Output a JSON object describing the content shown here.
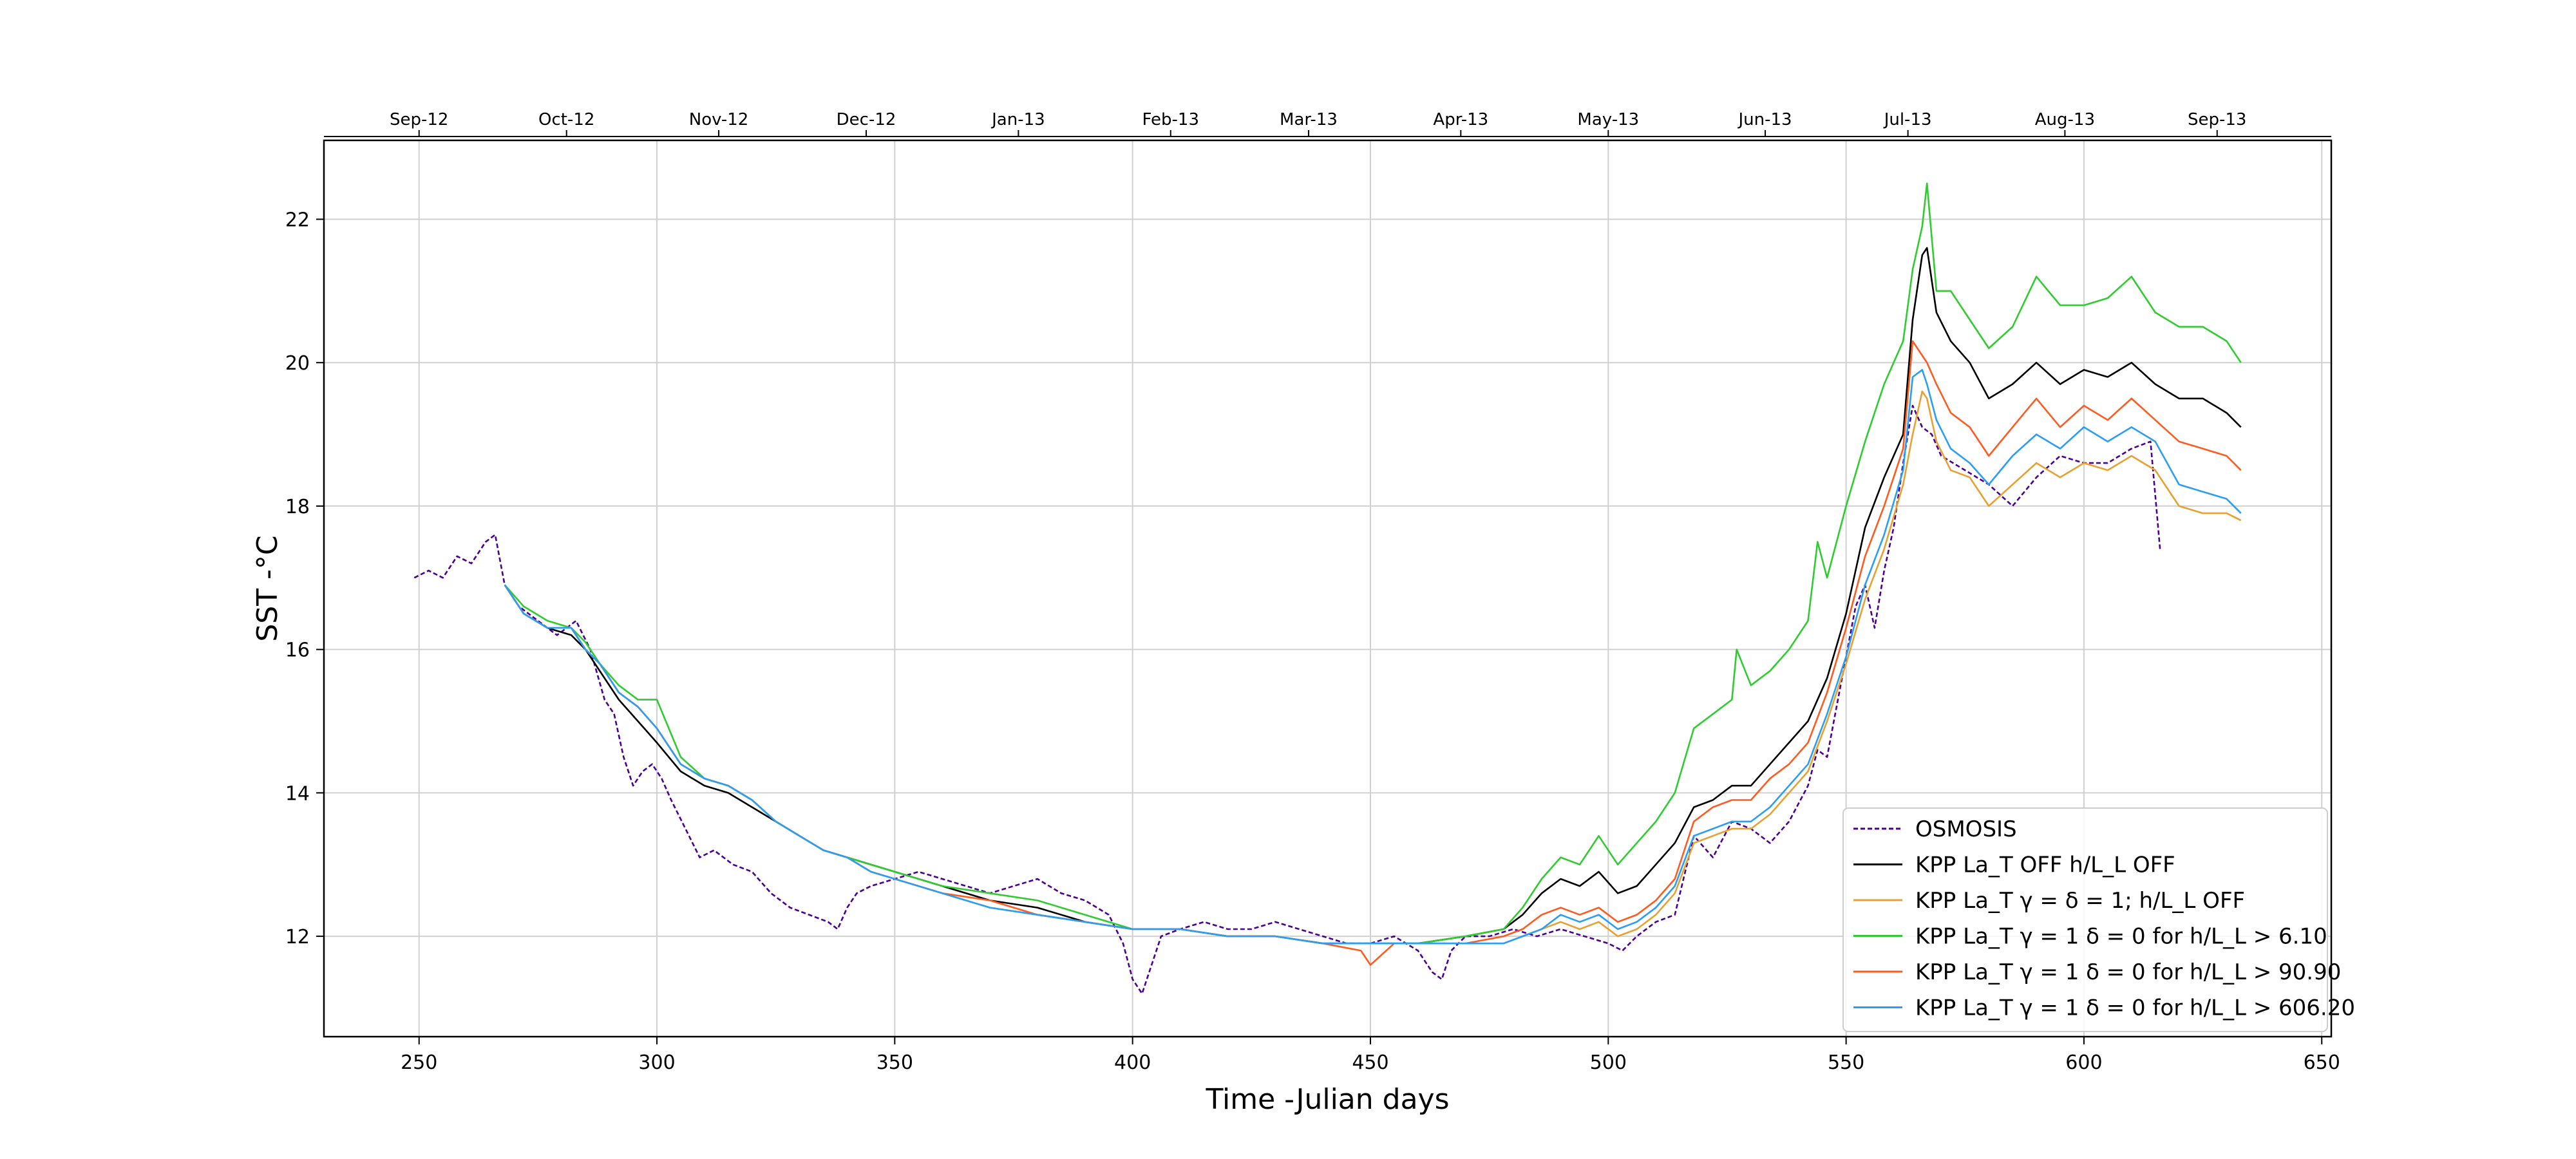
{
  "chart_data": {
    "type": "line",
    "title": "",
    "xlabel": "Time -Julian days",
    "ylabel": "SST -°C",
    "xlim": [
      230,
      652
    ],
    "ylim": [
      10.6,
      23.1
    ],
    "xticks": [
      250,
      300,
      350,
      400,
      450,
      500,
      550,
      600,
      650
    ],
    "yticks": [
      12,
      14,
      16,
      18,
      20,
      22
    ],
    "top_axis": {
      "ticks": [
        250,
        281,
        313,
        344,
        376,
        408,
        437,
        469,
        500,
        533,
        563,
        596,
        628
      ],
      "labels": [
        "Sep-12",
        "Oct-12",
        "Nov-12",
        "Dec-12",
        "Jan-13",
        "Feb-13",
        "Mar-13",
        "Apr-13",
        "May-13",
        "Jun-13",
        "Jul-13",
        "Aug-13",
        "Sep-13"
      ]
    },
    "grid": true,
    "legend_position": "lower-right",
    "series": [
      {
        "name": "OSMOSIS",
        "color": "#4b0092",
        "style": "dashed",
        "x": [
          249,
          252,
          255,
          258,
          261,
          264,
          266,
          268,
          271,
          275,
          279,
          283,
          286,
          289,
          291,
          293,
          295,
          297,
          299,
          301,
          303,
          306,
          309,
          312,
          316,
          320,
          324,
          328,
          332,
          336,
          338,
          340,
          342,
          345,
          350,
          355,
          360,
          365,
          370,
          375,
          380,
          385,
          390,
          395,
          398,
          400,
          402,
          404,
          406,
          410,
          415,
          420,
          425,
          430,
          435,
          440,
          445,
          450,
          455,
          460,
          463,
          465,
          467,
          470,
          475,
          480,
          485,
          490,
          495,
          500,
          503,
          506,
          510,
          514,
          518,
          522,
          526,
          530,
          534,
          538,
          542,
          544,
          546,
          548,
          550,
          552,
          554,
          556,
          558,
          560,
          562,
          564,
          566,
          568,
          570,
          575,
          580,
          585,
          590,
          595,
          600,
          605,
          610,
          614,
          616
        ],
        "y": [
          17.0,
          17.1,
          17.0,
          17.3,
          17.2,
          17.5,
          17.6,
          16.9,
          16.6,
          16.4,
          16.2,
          16.4,
          16.0,
          15.3,
          15.1,
          14.5,
          14.1,
          14.3,
          14.4,
          14.2,
          13.9,
          13.5,
          13.1,
          13.2,
          13.0,
          12.9,
          12.6,
          12.4,
          12.3,
          12.2,
          12.1,
          12.4,
          12.6,
          12.7,
          12.8,
          12.9,
          12.8,
          12.7,
          12.6,
          12.7,
          12.8,
          12.6,
          12.5,
          12.3,
          11.9,
          11.4,
          11.2,
          11.6,
          12.0,
          12.1,
          12.2,
          12.1,
          12.1,
          12.2,
          12.1,
          12.0,
          11.9,
          11.9,
          12.0,
          11.8,
          11.5,
          11.4,
          11.8,
          12.0,
          12.0,
          12.1,
          12.0,
          12.1,
          12.0,
          11.9,
          11.8,
          12.0,
          12.2,
          12.3,
          13.4,
          13.1,
          13.6,
          13.5,
          13.3,
          13.6,
          14.1,
          14.6,
          14.5,
          15.2,
          15.9,
          16.6,
          16.9,
          16.3,
          17.1,
          17.7,
          18.6,
          19.4,
          19.1,
          19.0,
          18.7,
          18.5,
          18.3,
          18.0,
          18.4,
          18.7,
          18.6,
          18.6,
          18.8,
          18.9,
          17.4
        ]
      },
      {
        "name": "KPP La_T OFF h/L_L OFF",
        "color": "#000000",
        "style": "solid",
        "x": [
          268,
          272,
          277,
          282,
          285,
          288,
          292,
          296,
          300,
          305,
          310,
          315,
          320,
          325,
          330,
          335,
          340,
          345,
          350,
          360,
          370,
          380,
          390,
          400,
          410,
          420,
          430,
          440,
          450,
          460,
          470,
          478,
          482,
          486,
          490,
          494,
          498,
          502,
          506,
          510,
          514,
          518,
          522,
          526,
          530,
          534,
          538,
          542,
          546,
          550,
          554,
          558,
          562,
          564,
          566,
          567,
          569,
          572,
          576,
          580,
          585,
          590,
          595,
          600,
          605,
          610,
          615,
          620,
          625,
          630,
          633
        ],
        "y": [
          16.9,
          16.5,
          16.3,
          16.2,
          16.0,
          15.7,
          15.3,
          15.0,
          14.7,
          14.3,
          14.1,
          14.0,
          13.8,
          13.6,
          13.4,
          13.2,
          13.1,
          13.0,
          12.9,
          12.7,
          12.5,
          12.4,
          12.2,
          12.1,
          12.1,
          12.0,
          12.0,
          11.9,
          11.9,
          11.9,
          12.0,
          12.1,
          12.3,
          12.6,
          12.8,
          12.7,
          12.9,
          12.6,
          12.7,
          13.0,
          13.3,
          13.8,
          13.9,
          14.1,
          14.1,
          14.4,
          14.7,
          15.0,
          15.6,
          16.5,
          17.7,
          18.4,
          19.0,
          20.6,
          21.5,
          21.6,
          20.7,
          20.3,
          20.0,
          19.5,
          19.7,
          20.0,
          19.7,
          19.9,
          19.8,
          20.0,
          19.7,
          19.5,
          19.5,
          19.3,
          19.1
        ]
      },
      {
        "name": "KPP La_T γ = δ = 1; h/L_L OFF",
        "color": "#e8a030",
        "style": "solid",
        "x": [
          268,
          272,
          277,
          282,
          285,
          288,
          292,
          296,
          300,
          305,
          310,
          315,
          320,
          325,
          330,
          335,
          340,
          345,
          350,
          360,
          370,
          380,
          390,
          400,
          410,
          420,
          430,
          440,
          450,
          460,
          470,
          478,
          482,
          486,
          490,
          494,
          498,
          502,
          506,
          510,
          514,
          518,
          522,
          526,
          530,
          534,
          538,
          542,
          546,
          550,
          554,
          558,
          562,
          564,
          566,
          567,
          569,
          572,
          576,
          580,
          585,
          590,
          595,
          600,
          605,
          610,
          615,
          620,
          625,
          630,
          633
        ],
        "y": [
          16.9,
          16.5,
          16.3,
          16.3,
          16.0,
          15.8,
          15.4,
          15.2,
          14.9,
          14.4,
          14.2,
          14.1,
          13.9,
          13.6,
          13.4,
          13.2,
          13.1,
          12.9,
          12.8,
          12.6,
          12.4,
          12.3,
          12.2,
          12.1,
          12.1,
          12.0,
          12.0,
          11.9,
          11.9,
          11.9,
          11.9,
          11.9,
          12.0,
          12.1,
          12.2,
          12.1,
          12.2,
          12.0,
          12.1,
          12.3,
          12.6,
          13.3,
          13.4,
          13.5,
          13.5,
          13.7,
          14.0,
          14.3,
          15.0,
          15.8,
          16.7,
          17.4,
          18.3,
          19.0,
          19.6,
          19.5,
          18.9,
          18.5,
          18.4,
          18.0,
          18.3,
          18.6,
          18.4,
          18.6,
          18.5,
          18.7,
          18.5,
          18.0,
          17.9,
          17.9,
          17.8
        ]
      },
      {
        "name": "KPP La_T γ = 1 δ = 0 for h/L_L > 6.10",
        "color": "#2ecc2e",
        "style": "solid",
        "x": [
          268,
          272,
          277,
          282,
          285,
          288,
          292,
          296,
          300,
          305,
          310,
          315,
          320,
          325,
          330,
          335,
          340,
          345,
          350,
          360,
          370,
          380,
          390,
          400,
          410,
          420,
          430,
          440,
          450,
          460,
          470,
          478,
          482,
          486,
          490,
          494,
          498,
          502,
          506,
          510,
          514,
          518,
          522,
          526,
          527,
          530,
          534,
          538,
          542,
          544,
          546,
          550,
          554,
          558,
          562,
          564,
          566,
          567,
          569,
          572,
          576,
          580,
          585,
          590,
          595,
          600,
          605,
          610,
          615,
          620,
          625,
          630,
          633
        ],
        "y": [
          16.9,
          16.6,
          16.4,
          16.3,
          16.1,
          15.8,
          15.5,
          15.3,
          15.3,
          14.5,
          14.2,
          14.1,
          13.9,
          13.6,
          13.4,
          13.2,
          13.1,
          13.0,
          12.9,
          12.7,
          12.6,
          12.5,
          12.3,
          12.1,
          12.1,
          12.0,
          12.0,
          11.9,
          11.9,
          11.9,
          12.0,
          12.1,
          12.4,
          12.8,
          13.1,
          13.0,
          13.4,
          13.0,
          13.3,
          13.6,
          14.0,
          14.9,
          15.1,
          15.3,
          16.0,
          15.5,
          15.7,
          16.0,
          16.4,
          17.5,
          17.0,
          18.0,
          18.9,
          19.7,
          20.3,
          21.3,
          21.9,
          22.5,
          21.0,
          21.0,
          20.6,
          20.2,
          20.5,
          21.2,
          20.8,
          20.8,
          20.9,
          21.2,
          20.7,
          20.5,
          20.5,
          20.3,
          20.0
        ]
      },
      {
        "name": "KPP La_T γ = 1 δ = 0 for h/L_L > 90.90",
        "color": "#ff5a1f",
        "style": "solid",
        "x": [
          268,
          272,
          277,
          282,
          285,
          288,
          292,
          296,
          300,
          305,
          310,
          315,
          320,
          325,
          330,
          335,
          340,
          345,
          350,
          360,
          370,
          380,
          390,
          400,
          410,
          420,
          430,
          440,
          448,
          450,
          455,
          460,
          470,
          478,
          482,
          486,
          490,
          494,
          498,
          502,
          506,
          510,
          514,
          518,
          522,
          526,
          530,
          534,
          538,
          542,
          546,
          550,
          554,
          558,
          562,
          564,
          566,
          567,
          569,
          572,
          576,
          580,
          585,
          590,
          595,
          600,
          605,
          610,
          615,
          620,
          625,
          630,
          633
        ],
        "y": [
          16.9,
          16.5,
          16.3,
          16.3,
          16.0,
          15.8,
          15.4,
          15.2,
          14.9,
          14.4,
          14.2,
          14.1,
          13.9,
          13.6,
          13.4,
          13.2,
          13.1,
          12.9,
          12.8,
          12.6,
          12.5,
          12.3,
          12.2,
          12.1,
          12.1,
          12.0,
          12.0,
          11.9,
          11.8,
          11.6,
          11.9,
          11.9,
          11.9,
          12.0,
          12.1,
          12.3,
          12.4,
          12.3,
          12.4,
          12.2,
          12.3,
          12.5,
          12.8,
          13.6,
          13.8,
          13.9,
          13.9,
          14.2,
          14.4,
          14.7,
          15.4,
          16.3,
          17.3,
          18.0,
          18.8,
          20.3,
          20.1,
          20.0,
          19.7,
          19.3,
          19.1,
          18.7,
          19.1,
          19.5,
          19.1,
          19.4,
          19.2,
          19.5,
          19.2,
          18.9,
          18.8,
          18.7,
          18.5
        ]
      },
      {
        "name": "KPP La_T γ = 1 δ = 0 for h/L_L > 606.20",
        "color": "#2a9df4",
        "style": "solid",
        "x": [
          268,
          272,
          277,
          282,
          285,
          288,
          292,
          296,
          300,
          305,
          310,
          315,
          320,
          325,
          330,
          335,
          340,
          345,
          350,
          360,
          370,
          380,
          390,
          400,
          410,
          420,
          430,
          440,
          450,
          460,
          470,
          478,
          482,
          486,
          490,
          494,
          498,
          502,
          506,
          510,
          514,
          518,
          522,
          526,
          530,
          534,
          538,
          542,
          546,
          550,
          554,
          558,
          562,
          564,
          566,
          567,
          569,
          572,
          576,
          580,
          585,
          590,
          595,
          600,
          605,
          610,
          615,
          620,
          625,
          630,
          633
        ],
        "y": [
          16.9,
          16.5,
          16.3,
          16.3,
          16.0,
          15.8,
          15.4,
          15.2,
          14.9,
          14.4,
          14.2,
          14.1,
          13.9,
          13.6,
          13.4,
          13.2,
          13.1,
          12.9,
          12.8,
          12.6,
          12.4,
          12.3,
          12.2,
          12.1,
          12.1,
          12.0,
          12.0,
          11.9,
          11.9,
          11.9,
          11.9,
          11.9,
          12.0,
          12.1,
          12.3,
          12.2,
          12.3,
          12.1,
          12.2,
          12.4,
          12.7,
          13.4,
          13.5,
          13.6,
          13.6,
          13.8,
          14.1,
          14.4,
          15.1,
          15.9,
          16.9,
          17.6,
          18.5,
          19.8,
          19.9,
          19.7,
          19.2,
          18.8,
          18.6,
          18.3,
          18.7,
          19.0,
          18.8,
          19.1,
          18.9,
          19.1,
          18.9,
          18.3,
          18.2,
          18.1,
          17.9
        ]
      }
    ]
  }
}
